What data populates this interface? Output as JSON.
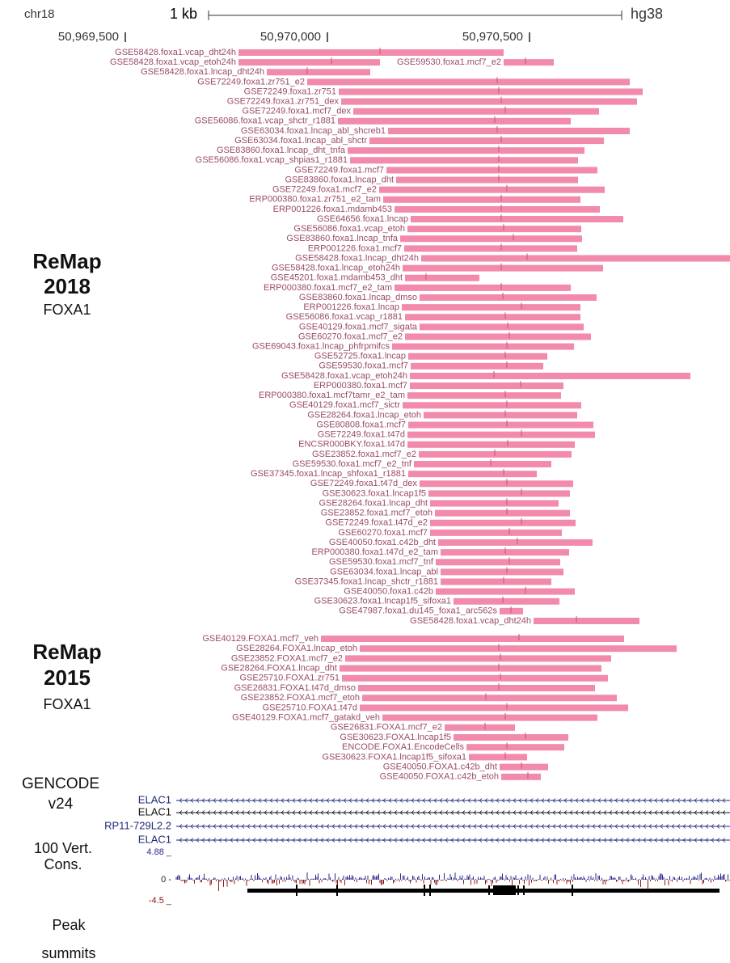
{
  "header": {
    "chrom": "chr18",
    "scale": "1 kb",
    "assembly": "hg38"
  },
  "ruler": {
    "range": [
      50969626,
      50970996
    ],
    "ticks": [
      {
        "value": 50969500,
        "label": "50,969,500"
      },
      {
        "value": 50970000,
        "label": "50,970,000"
      },
      {
        "value": 50970500,
        "label": "50,970,500"
      }
    ]
  },
  "remap_2018": {
    "title": "ReMap",
    "year": "2018",
    "factor": "FOXA1",
    "rows": [
      [
        {
          "label": "GSE58428.foxa1.vcap_dht24h",
          "start": 50969780,
          "end": 50970436,
          "summit": 50970130
        }
      ],
      [
        {
          "label": "GSE58428.foxa1.vcap_etoh24h",
          "start": 50969780,
          "end": 50970130,
          "summit": 50970010
        },
        {
          "label": "GSE59530.foxa1.mcf7_e2",
          "start": 50970436,
          "end": 50970560,
          "summit": 50970490
        }
      ],
      [
        {
          "label": "GSE58428.foxa1.lncap_dht24h",
          "start": 50969850,
          "end": 50970106,
          "summit": 50969950
        }
      ],
      [
        {
          "label": "GSE72249.foxa1.zr751_e2",
          "start": 50969950,
          "end": 50970748,
          "summit": 50970420
        }
      ],
      [
        {
          "label": "GSE72249.foxa1.zr751",
          "start": 50970028,
          "end": 50970780,
          "summit": 50970424
        }
      ],
      [
        {
          "label": "GSE72249.foxa1.zr751_dex",
          "start": 50970034,
          "end": 50970766,
          "summit": 50970430
        }
      ],
      [
        {
          "label": "GSE72249.foxa1.mcf7_dex",
          "start": 50970064,
          "end": 50970672,
          "summit": 50970440
        }
      ],
      [
        {
          "label": "GSE56086.foxa1.vcap_shctr_r1881",
          "start": 50970026,
          "end": 50970602,
          "summit": 50970414
        }
      ],
      [
        {
          "label": "GSE63034.foxa1.lncap_abl_shcreb1",
          "start": 50970150,
          "end": 50970748,
          "summit": 50970420
        }
      ],
      [
        {
          "label": "GSE63034.foxa1.lncap_abl_shctr",
          "start": 50970104,
          "end": 50970684,
          "summit": 50970430
        }
      ],
      [
        {
          "label": "GSE83860.foxa1.lncap_dht_tnfa",
          "start": 50970050,
          "end": 50970636,
          "summit": 50970424
        }
      ],
      [
        {
          "label": "GSE56086.foxa1.vcap_shpias1_r1881",
          "start": 50970056,
          "end": 50970620,
          "summit": 50970424
        }
      ],
      [
        {
          "label": "GSE72249.foxa1.mcf7",
          "start": 50970146,
          "end": 50970668,
          "summit": 50970424
        }
      ],
      [
        {
          "label": "GSE83860.foxa1.lncap_dht",
          "start": 50970170,
          "end": 50970620,
          "summit": 50970424
        }
      ],
      [
        {
          "label": "GSE72249.foxa1.mcf7_e2",
          "start": 50970128,
          "end": 50970686,
          "summit": 50970444
        }
      ],
      [
        {
          "label": "ERP000380.foxa1.zr751_e2_tam",
          "start": 50970138,
          "end": 50970626,
          "summit": 50970430
        }
      ],
      [
        {
          "label": "ERP001226.foxa1.mdamb453",
          "start": 50970166,
          "end": 50970674,
          "summit": 50970430
        }
      ],
      [
        {
          "label": "GSE64656.foxa1.lncap",
          "start": 50970206,
          "end": 50970732,
          "summit": 50970430
        }
      ],
      [
        {
          "label": "GSE56086.foxa1.vcap_etoh",
          "start": 50970198,
          "end": 50970628,
          "summit": 50970436
        }
      ],
      [
        {
          "label": "GSE83860.foxa1.lncap_tnfa",
          "start": 50970180,
          "end": 50970630,
          "summit": 50970460
        }
      ],
      [
        {
          "label": "ERP001226.foxa1.mcf7",
          "start": 50970190,
          "end": 50970618,
          "summit": 50970430
        }
      ],
      [
        {
          "label": "GSE58428.foxa1.lncap_dht24h",
          "start": 50970232,
          "end": 50970996,
          "summit": 50970494
        }
      ],
      [
        {
          "label": "GSE58428.foxa1.lncap_etoh24h",
          "start": 50970186,
          "end": 50970682,
          "summit": 50970430
        }
      ],
      [
        {
          "label": "GSE45201.foxa1.mdamb453_dht",
          "start": 50970192,
          "end": 50970376,
          "summit": 50970244
        }
      ],
      [
        {
          "label": "ERP000380.foxa1.mcf7_e2_tam",
          "start": 50970166,
          "end": 50970602,
          "summit": 50970430
        }
      ],
      [
        {
          "label": "GSE83860.foxa1.lncap_dmso",
          "start": 50970228,
          "end": 50970666,
          "summit": 50970434
        }
      ],
      [
        {
          "label": "ERP001226.foxa1.lncap",
          "start": 50970184,
          "end": 50970626,
          "summit": 50970480
        }
      ],
      [
        {
          "label": "GSE56086.foxa1.vcap_r1881",
          "start": 50970192,
          "end": 50970626,
          "summit": 50970440
        }
      ],
      [
        {
          "label": "GSE40129.foxa1.mcf7_sigata",
          "start": 50970228,
          "end": 50970634,
          "summit": 50970446
        }
      ],
      [
        {
          "label": "GSE60270.foxa1.mcf7_e2",
          "start": 50970192,
          "end": 50970652,
          "summit": 50970450
        }
      ],
      [
        {
          "label": "GSE69043.foxa1.lncap_phfrpmifcs",
          "start": 50970160,
          "end": 50970610,
          "summit": 50970444
        }
      ],
      [
        {
          "label": "GSE52725.foxa1.lncap",
          "start": 50970200,
          "end": 50970544,
          "summit": 50970440
        }
      ],
      [
        {
          "label": "GSE59530.foxa1.mcf7",
          "start": 50970206,
          "end": 50970534,
          "summit": 50970444
        }
      ],
      [
        {
          "label": "GSE58428.foxa1.vcap_etoh24h",
          "start": 50970204,
          "end": 50970898,
          "summit": 50970412
        }
      ],
      [
        {
          "label": "ERP000380.foxa1.mcf7",
          "start": 50970204,
          "end": 50970584,
          "summit": 50970478
        }
      ],
      [
        {
          "label": "ERP000380.foxa1.mcf7tamr_e2_tam",
          "start": 50970198,
          "end": 50970578,
          "summit": 50970440
        }
      ],
      [
        {
          "label": "GSE40129.foxa1.mcf7_sictr",
          "start": 50970186,
          "end": 50970628,
          "summit": 50970444
        }
      ],
      [
        {
          "label": "GSE28264.foxa1.lncap_etoh",
          "start": 50970238,
          "end": 50970618,
          "summit": 50970440
        }
      ],
      [
        {
          "label": "GSE80808.foxa1.mcf7",
          "start": 50970200,
          "end": 50970658,
          "summit": 50970444
        }
      ],
      [
        {
          "label": "GSE72249.foxa1.t47d",
          "start": 50970198,
          "end": 50970662,
          "summit": 50970480
        }
      ],
      [
        {
          "label": "ENCSR000BKY.foxa1.t47d",
          "start": 50970198,
          "end": 50970612,
          "summit": 50970446
        }
      ],
      [
        {
          "label": "GSE23852.foxa1.mcf7_e2",
          "start": 50970226,
          "end": 50970604,
          "summit": 50970414
        }
      ],
      [
        {
          "label": "GSE59530.foxa1.mcf7_e2_tnf",
          "start": 50970214,
          "end": 50970554,
          "summit": 50970404
        }
      ],
      [
        {
          "label": "GSE37345.foxa1.lncap_shfoxa1_r1881",
          "start": 50970200,
          "end": 50970518,
          "summit": 50970436
        }
      ],
      [
        {
          "label": "GSE72249.foxa1.t47d_dex",
          "start": 50970228,
          "end": 50970608,
          "summit": 50970444
        }
      ],
      [
        {
          "label": "GSE30623.foxa1.lncap1f5",
          "start": 50970250,
          "end": 50970600,
          "summit": 50970480
        }
      ],
      [
        {
          "label": "GSE28264.foxa1.lncap_dht",
          "start": 50970254,
          "end": 50970572,
          "summit": 50970444
        }
      ],
      [
        {
          "label": "GSE23852.foxa1.mcf7_etoh",
          "start": 50970266,
          "end": 50970600,
          "summit": 50970444
        }
      ],
      [
        {
          "label": "GSE72249.foxa1.t47d_e2",
          "start": 50970254,
          "end": 50970614,
          "summit": 50970480
        }
      ],
      [
        {
          "label": "GSE60270.foxa1.mcf7",
          "start": 50970254,
          "end": 50970580,
          "summit": 50970450
        }
      ],
      [
        {
          "label": "GSE40050.foxa1.c42b_dht",
          "start": 50970274,
          "end": 50970656,
          "summit": 50970470
        }
      ],
      [
        {
          "label": "ERP000380.foxa1.t47d_e2_tam",
          "start": 50970280,
          "end": 50970598,
          "summit": 50970440
        }
      ],
      [
        {
          "label": "GSE59530.foxa1.mcf7_tnf",
          "start": 50970268,
          "end": 50970576,
          "summit": 50970450
        }
      ],
      [
        {
          "label": "GSE63034.foxa1.lncap_abl",
          "start": 50970280,
          "end": 50970584,
          "summit": 50970444
        }
      ],
      [
        {
          "label": "GSE37345.foxa1.lncap_shctr_r1881",
          "start": 50970280,
          "end": 50970554,
          "summit": 50970436
        }
      ],
      [
        {
          "label": "GSE40050.foxa1.c42b",
          "start": 50970268,
          "end": 50970612,
          "summit": 50970490
        }
      ],
      [
        {
          "label": "GSE30623.foxa1.lncap1f5_sifoxa1",
          "start": 50970312,
          "end": 50970574,
          "summit": 50970434
        }
      ],
      [
        {
          "label": "GSE47987.foxa1.du145_foxa1_arc562s",
          "start": 50970426,
          "end": 50970484,
          "summit": 50970454
        }
      ],
      [
        {
          "label": "GSE58428.foxa1.vcap_dht24h",
          "start": 50970510,
          "end": 50970772,
          "summit": 50970616
        }
      ]
    ]
  },
  "remap_2015": {
    "title": "ReMap",
    "year": "2015",
    "factor": "FOXA1",
    "rows": [
      [
        {
          "label": "GSE40129.FOXA1.mcf7_veh",
          "start": 50969984,
          "end": 50970734,
          "summit": 50970474
        }
      ],
      [
        {
          "label": "GSE28264.FOXA1.lncap_etoh",
          "start": 50970080,
          "end": 50970864,
          "summit": 50970424
        }
      ],
      [
        {
          "label": "GSE23852.FOXA1.mcf7_e2",
          "start": 50970044,
          "end": 50970702,
          "summit": 50970428
        }
      ],
      [
        {
          "label": "GSE28264.FOXA1.lncap_dht",
          "start": 50970030,
          "end": 50970678,
          "summit": 50970424
        }
      ],
      [
        {
          "label": "GSE25710.FOXA1.zr751",
          "start": 50970036,
          "end": 50970694,
          "summit": 50970428
        }
      ],
      [
        {
          "label": "GSE26831.FOXA1.t47d_dmso",
          "start": 50970076,
          "end": 50970662,
          "summit": 50970424
        }
      ],
      [
        {
          "label": "GSE23852.FOXA1.mcf7_etoh",
          "start": 50970086,
          "end": 50970716,
          "summit": 50970392
        }
      ],
      [
        {
          "label": "GSE25710.FOXA1.t47d",
          "start": 50970080,
          "end": 50970744,
          "summit": 50970444
        }
      ],
      [
        {
          "label": "GSE40129.FOXA1.mcf7_gatakd_veh",
          "start": 50970136,
          "end": 50970668,
          "summit": 50970440
        }
      ],
      [
        {
          "label": "GSE26831.FOXA1.mcf7_e2",
          "start": 50970290,
          "end": 50970464,
          "summit": 50970390
        }
      ],
      [
        {
          "label": "GSE30623.FOXA1.lncap1f5",
          "start": 50970312,
          "end": 50970596,
          "summit": 50970490
        }
      ],
      [
        {
          "label": "ENCODE.FOXA1.EncodeCells",
          "start": 50970344,
          "end": 50970586,
          "summit": 50970444
        }
      ],
      [
        {
          "label": "GSE30623.FOXA1.lncap1f5_sifoxa1",
          "start": 50970350,
          "end": 50970494,
          "summit": 50970440
        }
      ],
      [
        {
          "label": "GSE40050.FOXA1.c42b_dht",
          "start": 50970426,
          "end": 50970546,
          "summit": 50970480
        }
      ],
      [
        {
          "label": "GSE40050.FOXA1.c42b_etoh",
          "start": 50970430,
          "end": 50970528,
          "summit": 50970496
        }
      ]
    ]
  },
  "gencode": {
    "title": "GENCODE",
    "version": "v24",
    "genes": [
      "ELAC1",
      "ELAC1",
      "RP11-729L2.2",
      "ELAC1"
    ]
  },
  "conservation": {
    "title": "100 Vert.",
    "subtitle": "Cons.",
    "max": "4.88 _",
    "zero": "0 -",
    "min": "-4.5 _"
  },
  "summits": {
    "title": "Peak",
    "subtitle": "summits"
  }
}
